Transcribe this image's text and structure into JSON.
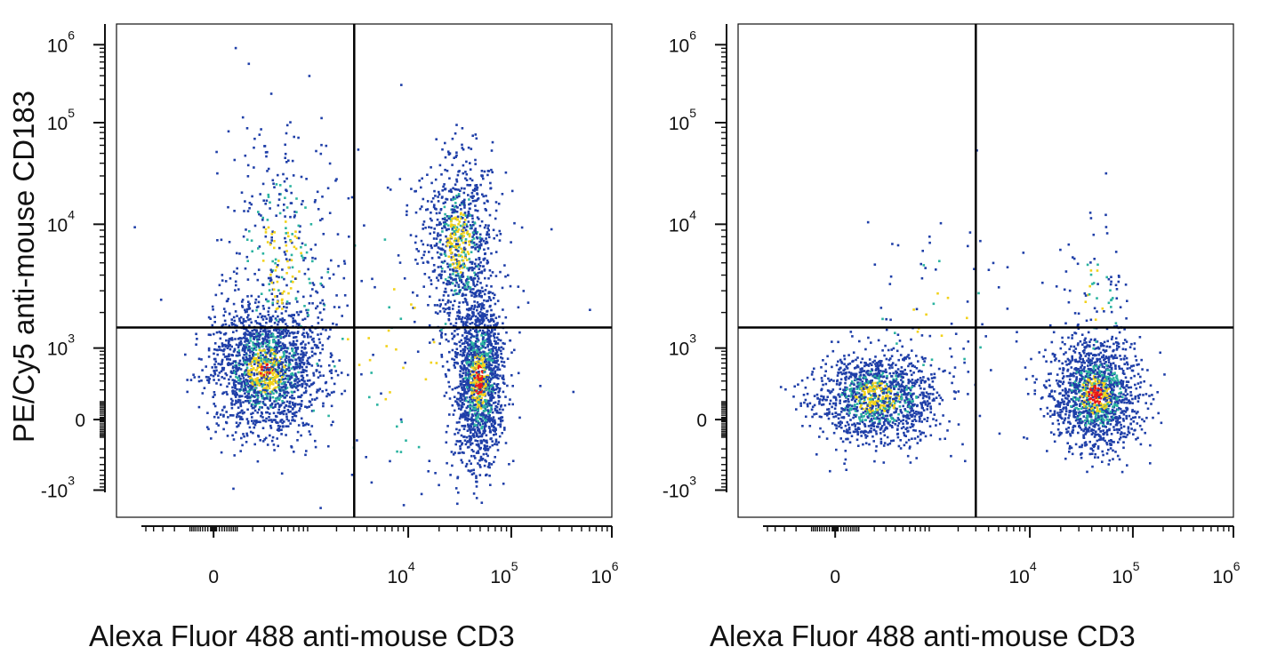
{
  "colors": {
    "axis": "#111111",
    "gate": "#000000",
    "density_low": "#1f3fa8",
    "density_mid": "#2bb3a0",
    "density_high": "#f2d21b",
    "density_peak": "#e8191a"
  },
  "chart_data": [
    {
      "type": "scatter",
      "scale": "biexponential",
      "xlabel": "Alexa Fluor 488 anti-mouse CD3",
      "ylabel": "PE/Cy5 anti-mouse CD183",
      "x_ticks": [
        {
          "value": 0,
          "base": "0",
          "exp": ""
        },
        {
          "value": 10000,
          "base": "10",
          "exp": "4"
        },
        {
          "value": 100000,
          "base": "10",
          "exp": "5"
        },
        {
          "value": 1000000,
          "base": "10",
          "exp": "6"
        }
      ],
      "y_ticks": [
        {
          "value": -1000,
          "base": "-10",
          "exp": "3"
        },
        {
          "value": 0,
          "base": "0",
          "exp": ""
        },
        {
          "value": 1000,
          "base": "10",
          "exp": "3"
        },
        {
          "value": 10000,
          "base": "10",
          "exp": "4"
        },
        {
          "value": 100000,
          "base": "10",
          "exp": "5"
        },
        {
          "value": 1000000,
          "base": "10",
          "exp": "6"
        }
      ],
      "quadrant_gate": {
        "x": 3000,
        "y": 1500
      },
      "populations": [
        {
          "name": "CD3- CD183-",
          "center_x": 500,
          "center_y": 400,
          "spread": "wide",
          "density": "medium",
          "peak": "yellow-red"
        },
        {
          "name": "CD3- CD183+",
          "center_x": 600,
          "center_y": 5000,
          "spread": "sparse",
          "density": "low"
        },
        {
          "name": "CD3+ CD183+",
          "center_x": 30000,
          "center_y": 6000,
          "spread": "elongated",
          "density": "medium",
          "peak": "yellow"
        },
        {
          "name": "CD3+ CD183-",
          "center_x": 40000,
          "center_y": 400,
          "spread": "elongated",
          "density": "high",
          "peak": "red"
        }
      ]
    },
    {
      "type": "scatter",
      "scale": "biexponential",
      "xlabel": "Alexa Fluor 488 anti-mouse CD3",
      "ylabel": "",
      "x_ticks": [
        {
          "value": 0,
          "base": "0",
          "exp": ""
        },
        {
          "value": 10000,
          "base": "10",
          "exp": "4"
        },
        {
          "value": 100000,
          "base": "10",
          "exp": "5"
        },
        {
          "value": 1000000,
          "base": "10",
          "exp": "6"
        }
      ],
      "y_ticks": [
        {
          "value": -1000,
          "base": "-10",
          "exp": "3"
        },
        {
          "value": 0,
          "base": "0",
          "exp": ""
        },
        {
          "value": 1000,
          "base": "10",
          "exp": "3"
        },
        {
          "value": 10000,
          "base": "10",
          "exp": "4"
        },
        {
          "value": 100000,
          "base": "10",
          "exp": "5"
        },
        {
          "value": 1000000,
          "base": "10",
          "exp": "6"
        }
      ],
      "quadrant_gate": {
        "x": 3000,
        "y": 1500
      },
      "populations": [
        {
          "name": "CD3- CD183-",
          "center_x": 500,
          "center_y": 250,
          "spread": "medium",
          "density": "medium",
          "peak": "yellow"
        },
        {
          "name": "CD3- CD183+",
          "center_x": 1500,
          "center_y": 5000,
          "spread": "very sparse",
          "density": "very low"
        },
        {
          "name": "CD3+ CD183+",
          "center_x": 30000,
          "center_y": 4000,
          "spread": "very sparse",
          "density": "very low"
        },
        {
          "name": "CD3+ CD183-",
          "center_x": 35000,
          "center_y": 300,
          "spread": "medium",
          "density": "high",
          "peak": "red"
        }
      ]
    }
  ]
}
